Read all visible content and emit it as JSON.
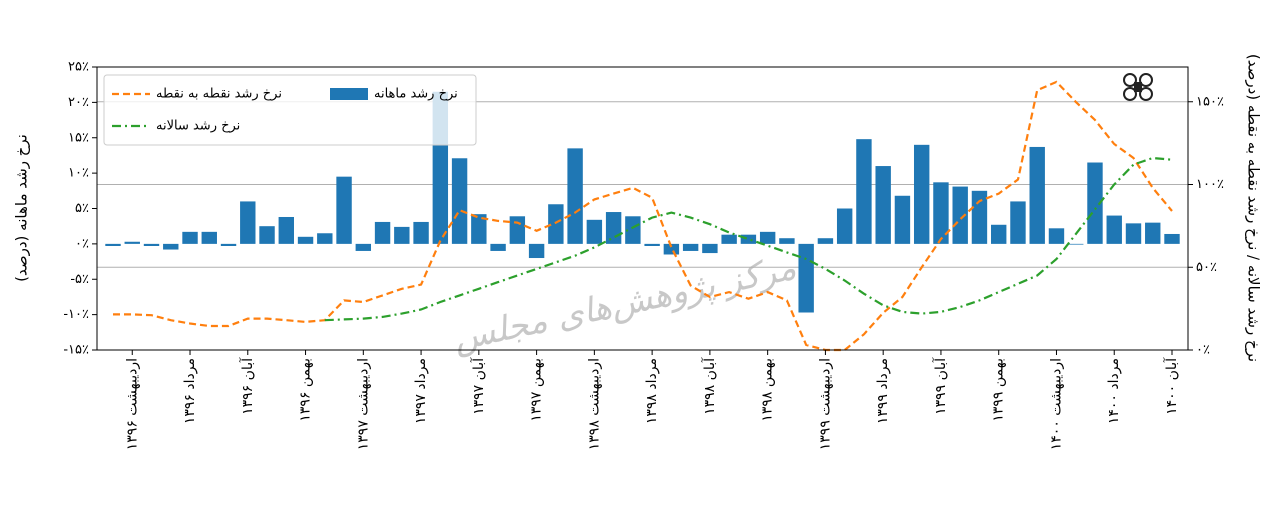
{
  "chart_data": {
    "type": "bar",
    "ylabel": "نرخ رشد ماهانه (درصد)",
    "y2label": "نرخ رشد سالانه / نرخ رشد نقطه به نقطه (درصد)",
    "watermark": "مرکز پژوهش‌های مجلس",
    "categories": [
      null,
      "اردیبهشت ۱۳۹۶",
      null,
      null,
      "مرداد ۱۳۹۶",
      null,
      null,
      "آبان ۱۳۹۶",
      null,
      null,
      "بهمن ۱۳۹۶",
      null,
      null,
      "اردیبهشت ۱۳۹۷",
      null,
      null,
      "مرداد ۱۳۹۷",
      null,
      null,
      "آبان ۱۳۹۷",
      null,
      null,
      "بهمن ۱۳۹۷",
      null,
      null,
      "اردیبهشت ۱۳۹۸",
      null,
      null,
      "مرداد ۱۳۹۸",
      null,
      null,
      "آبان ۱۳۹۸",
      null,
      null,
      "بهمن ۱۳۹۸",
      null,
      null,
      "اردیبهشت ۱۳۹۹",
      null,
      null,
      "مرداد ۱۳۹۹",
      null,
      null,
      "آبان ۱۳۹۹",
      null,
      null,
      "بهمن ۱۳۹۹",
      null,
      null,
      "اردیبهشت ۱۴۰۰",
      null,
      null,
      "مرداد ۱۴۰۰",
      null,
      null,
      "آبان ۱۴۰۰"
    ],
    "series": [
      {
        "name": "نرخ رشد نقطه به نقطه",
        "color": "#ff7f0e",
        "kind": "line",
        "linestyle": "dashed",
        "axis": "y2",
        "values": [
          21.5,
          21.5,
          21,
          18,
          16,
          14.5,
          14.5,
          19,
          19,
          18,
          17,
          18,
          30,
          29,
          33,
          37,
          39.5,
          66,
          84.5,
          80,
          78,
          77,
          72,
          77,
          83,
          91,
          94.5,
          98,
          92,
          62,
          39,
          32,
          35,
          31,
          35,
          30,
          3,
          0,
          0,
          9.5,
          22.5,
          32,
          50,
          67,
          79,
          90,
          94.5,
          103,
          157,
          162,
          150,
          139,
          124.5,
          116,
          98,
          84
        ]
      },
      {
        "name": "نرخ رشد سالانه",
        "color": "#2ca02c",
        "kind": "line",
        "linestyle": "dashdot",
        "axis": "y2",
        "values": [
          null,
          null,
          null,
          null,
          null,
          null,
          null,
          null,
          null,
          null,
          null,
          18,
          18.5,
          19,
          20,
          22,
          24.5,
          29,
          33,
          37,
          41,
          45,
          49,
          53,
          57,
          62,
          68,
          74,
          80,
          83,
          80,
          76,
          71,
          67,
          63,
          59,
          55,
          49,
          42,
          34,
          27,
          23,
          22,
          23,
          26,
          30,
          35,
          40,
          45,
          55,
          70,
          85,
          100,
          112,
          116,
          115
        ]
      },
      {
        "name": "نرخ رشد ماهانه",
        "color": "#1f77b4",
        "kind": "bar",
        "axis": "y",
        "values": [
          -0.3,
          0.3,
          -0.3,
          -0.8,
          1.7,
          1.7,
          -0.3,
          6,
          2.5,
          3.8,
          1,
          1.5,
          9.5,
          -1,
          3.1,
          2.4,
          3.1,
          21.5,
          12.1,
          4.2,
          -1,
          3.9,
          -2,
          5.6,
          13.5,
          3.4,
          4.5,
          3.9,
          -0.3,
          -1.5,
          -1,
          -1.3,
          1.3,
          1.3,
          1.7,
          0.8,
          -9.7,
          0.8,
          5,
          14.8,
          11,
          6.8,
          14,
          8.7,
          8.1,
          7.5,
          2.7,
          6,
          13.7,
          2.2,
          -0.1,
          11.5,
          4,
          2.9,
          3,
          1.4
        ]
      }
    ],
    "ylim": [
      -15,
      25
    ],
    "yticks": [
      {
        "value": -15,
        "label": "-۱۵٪"
      },
      {
        "value": -10,
        "label": "-۱۰٪"
      },
      {
        "value": -5,
        "label": "-۵٪"
      },
      {
        "value": 0,
        "label": "۰٪"
      },
      {
        "value": 5,
        "label": "۵٪"
      },
      {
        "value": 10,
        "label": "۱۰٪"
      },
      {
        "value": 15,
        "label": "۱۵٪"
      },
      {
        "value": 20,
        "label": "۲۰٪"
      },
      {
        "value": 25,
        "label": "۲۵٪"
      }
    ],
    "y2lim": [
      0,
      171
    ],
    "y2ticks": [
      {
        "value": 0,
        "label": "۰٪"
      },
      {
        "value": 50,
        "label": "۵۰٪"
      },
      {
        "value": 100,
        "label": "۱۰۰٪"
      },
      {
        "value": 150,
        "label": "۱۵۰٪"
      }
    ],
    "grid": "y2",
    "legend": "upper left"
  }
}
